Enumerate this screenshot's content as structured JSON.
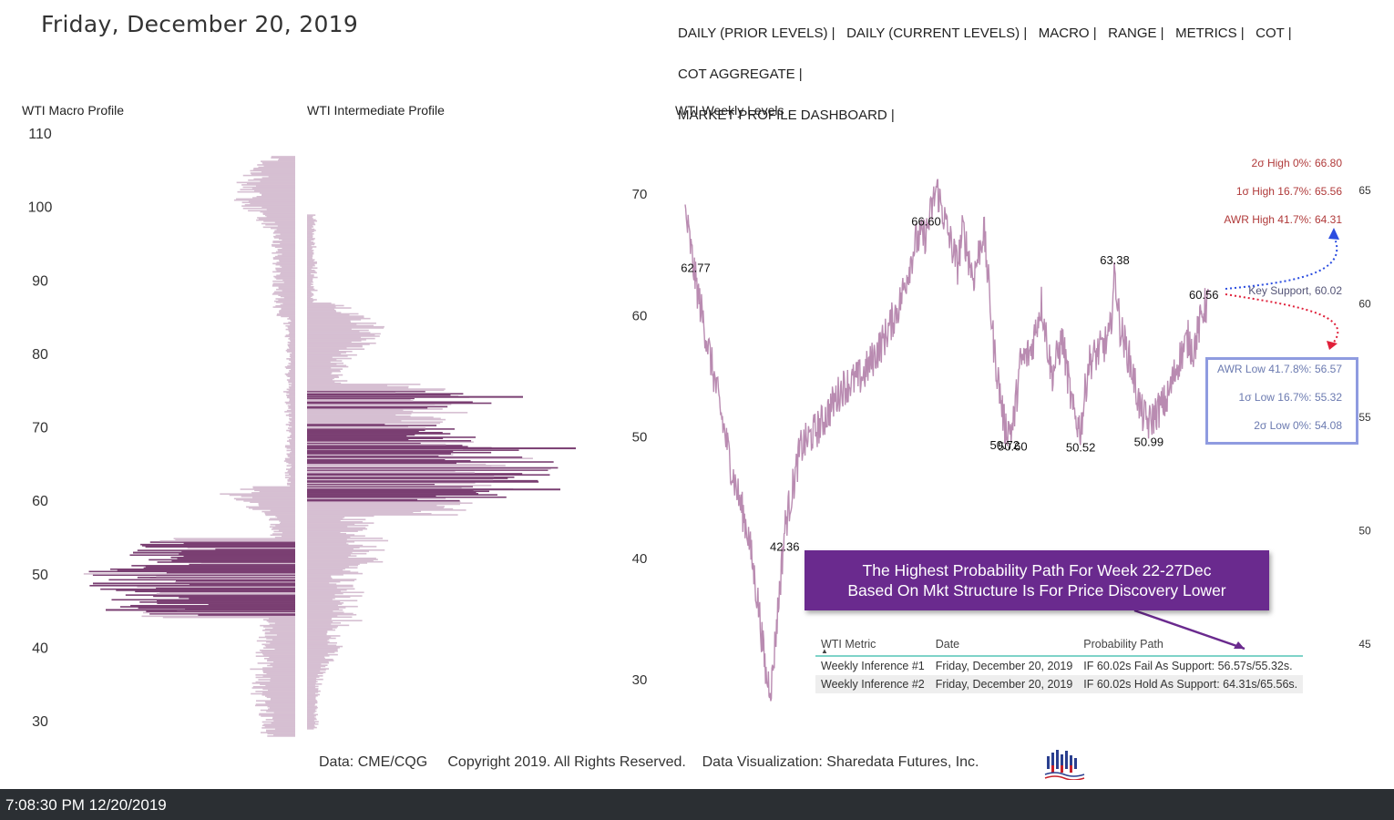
{
  "header": {
    "date": "Friday, December 20, 2019",
    "nav": [
      "DAILY (PRIOR LEVELS) |",
      "DAILY (CURRENT LEVELS) |",
      "MACRO |",
      "RANGE |",
      "METRICS |",
      "COT |",
      "COT AGGREGATE |",
      "MARKET PROFILE DASHBOARD |"
    ]
  },
  "macro_profile": {
    "title": "WTI Macro Profile"
  },
  "intermediate_profile": {
    "title": "WTI Intermediate Profile"
  },
  "weekly_levels": {
    "title": "WTI Weekly Levels"
  },
  "colors": {
    "profile_light": "#d6bfd2",
    "profile_dark": "#7a3f72",
    "price_line": "#b98bb1",
    "accent_purple": "#6a2a8e",
    "level_red": "#b03a3a",
    "level_blue": "#6b7ab0",
    "box_border": "#8f9be0"
  },
  "chart_data": [
    {
      "type": "bar",
      "orientation": "horizontal",
      "name": "WTI Macro Profile",
      "y_axis_ticks": [
        110,
        100,
        90,
        80,
        70,
        60,
        50,
        40,
        30
      ],
      "ylim": [
        27,
        112
      ],
      "grid": false,
      "high_volume_zone": [
        44,
        54
      ],
      "peak_price": 49,
      "span": [
        28,
        107
      ]
    },
    {
      "type": "bar",
      "orientation": "horizontal",
      "name": "WTI Intermediate Profile",
      "ylim": [
        27,
        112
      ],
      "grid": false,
      "high_volume_zones": [
        [
          60,
          65
        ],
        [
          65,
          70
        ],
        [
          73,
          75
        ]
      ],
      "peak_prices": [
        67,
        62
      ],
      "span": [
        29,
        99
      ]
    },
    {
      "type": "line",
      "name": "WTI Weekly Levels",
      "left_axis_ticks": [
        70,
        60,
        50,
        40,
        30
      ],
      "right_axis_ticks": [
        65,
        60,
        55,
        50,
        45
      ],
      "ylim": [
        26,
        74
      ],
      "grid": false,
      "price_path_anchors": [
        {
          "t": 0,
          "v": 68.5
        },
        {
          "t": 0.02,
          "v": 62.77
        },
        {
          "t": 0.05,
          "v": 56
        },
        {
          "t": 0.09,
          "v": 47
        },
        {
          "t": 0.12,
          "v": 42
        },
        {
          "t": 0.14,
          "v": 36
        },
        {
          "t": 0.155,
          "v": 30
        },
        {
          "t": 0.165,
          "v": 29.5
        },
        {
          "t": 0.19,
          "v": 42.36
        },
        {
          "t": 0.22,
          "v": 49
        },
        {
          "t": 0.26,
          "v": 51
        },
        {
          "t": 0.3,
          "v": 54
        },
        {
          "t": 0.34,
          "v": 55
        },
        {
          "t": 0.38,
          "v": 58
        },
        {
          "t": 0.41,
          "v": 61
        },
        {
          "t": 0.44,
          "v": 66
        },
        {
          "t": 0.46,
          "v": 66.6
        },
        {
          "t": 0.48,
          "v": 70.5
        },
        {
          "t": 0.5,
          "v": 67
        },
        {
          "t": 0.52,
          "v": 64
        },
        {
          "t": 0.53,
          "v": 67
        },
        {
          "t": 0.55,
          "v": 63
        },
        {
          "t": 0.57,
          "v": 67
        },
        {
          "t": 0.59,
          "v": 57
        },
        {
          "t": 0.61,
          "v": 50.72
        },
        {
          "t": 0.625,
          "v": 50.6
        },
        {
          "t": 0.64,
          "v": 56
        },
        {
          "t": 0.66,
          "v": 57
        },
        {
          "t": 0.68,
          "v": 61
        },
        {
          "t": 0.7,
          "v": 55
        },
        {
          "t": 0.72,
          "v": 58
        },
        {
          "t": 0.74,
          "v": 52
        },
        {
          "t": 0.755,
          "v": 50.52
        },
        {
          "t": 0.77,
          "v": 56
        },
        {
          "t": 0.79,
          "v": 57
        },
        {
          "t": 0.81,
          "v": 58
        },
        {
          "t": 0.82,
          "v": 63.38
        },
        {
          "t": 0.83,
          "v": 59
        },
        {
          "t": 0.85,
          "v": 56
        },
        {
          "t": 0.87,
          "v": 52
        },
        {
          "t": 0.885,
          "v": 50.99
        },
        {
          "t": 0.9,
          "v": 52
        },
        {
          "t": 0.92,
          "v": 53
        },
        {
          "t": 0.94,
          "v": 56
        },
        {
          "t": 0.96,
          "v": 58
        },
        {
          "t": 0.97,
          "v": 57
        },
        {
          "t": 0.99,
          "v": 60.56
        },
        {
          "t": 1.0,
          "v": 61
        }
      ],
      "point_labels": [
        {
          "t": 0.02,
          "v": 62.77,
          "label": "62.77"
        },
        {
          "t": 0.46,
          "v": 66.6,
          "label": "66.60"
        },
        {
          "t": 0.82,
          "v": 63.38,
          "label": "63.38"
        },
        {
          "t": 0.99,
          "v": 60.56,
          "label": "60.56"
        },
        {
          "t": 0.61,
          "v": 50.72,
          "label": "50.72"
        },
        {
          "t": 0.625,
          "v": 50.6,
          "label": "50.60"
        },
        {
          "t": 0.755,
          "v": 50.52,
          "label": "50.52"
        },
        {
          "t": 0.885,
          "v": 50.99,
          "label": "50.99"
        },
        {
          "t": 0.19,
          "v": 42.36,
          "label": "42.36"
        }
      ],
      "levels": [
        {
          "label": "2σ High 0%: 66.80",
          "value": 66.8,
          "color": "#b03a3a"
        },
        {
          "label": "1σ High 16.7%: 65.56",
          "value": 65.56,
          "color": "#b03a3a"
        },
        {
          "label": "AWR High 41.7%: 64.31",
          "value": 64.31,
          "color": "#b03a3a"
        },
        {
          "label": "Key Support, 60.02",
          "value": 60.02,
          "color": "#555577"
        },
        {
          "label": "AWR Low 41.7.8%: 56.57",
          "value": 56.57,
          "color": "#6b7ab0"
        },
        {
          "label": "1σ Low 16.7%: 55.32",
          "value": 55.32,
          "color": "#6b7ab0"
        },
        {
          "label": "2σ Low 0%: 54.08",
          "value": 54.08,
          "color": "#6b7ab0"
        }
      ]
    }
  ],
  "callout": {
    "line1": "The Highest Probability Path For Week 22-27Dec",
    "line2": "Based On Mkt Structure Is For Price Discovery Lower"
  },
  "table": {
    "headers": [
      "WTI Metric",
      "Date",
      "Probability Path"
    ],
    "rows": [
      [
        "Weekly Inference #1",
        "Friday, December 20, 2019",
        "IF 60.02s Fail As Support: 56.57s/55.32s."
      ],
      [
        "Weekly Inference #2",
        "Friday, December 20, 2019",
        "IF 60.02s Hold As Support: 64.31s/65.56s."
      ]
    ]
  },
  "footer": {
    "source": "Data: CME/CQG",
    "copyright": "Copyright 2019. All Rights Reserved.",
    "credit": "Data Visualization: Sharedata Futures, Inc."
  },
  "status_bar": {
    "clock": "7:08:30 PM 12/20/2019"
  }
}
